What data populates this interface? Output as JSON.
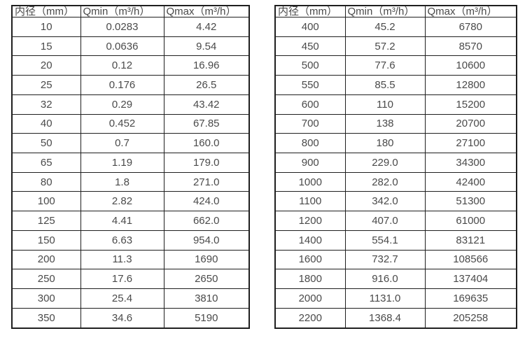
{
  "colors": {
    "background": "#ffffff",
    "text": "#4a4a4a",
    "border": "#1f1f1f"
  },
  "tables": [
    {
      "name": "diameter-flow-table-1",
      "headers": [
        "内径（mm）",
        "Qmin（m³/h）",
        "Qmax（m³/h）"
      ],
      "rows": [
        [
          "10",
          "0.0283",
          "4.42"
        ],
        [
          "15",
          "0.0636",
          "9.54"
        ],
        [
          "20",
          "0.12",
          "16.96"
        ],
        [
          "25",
          "0.176",
          "26.5"
        ],
        [
          "32",
          "0.29",
          "43.42"
        ],
        [
          "40",
          "0.452",
          "67.85"
        ],
        [
          "50",
          "0.7",
          "160.0"
        ],
        [
          "65",
          "1.19",
          "179.0"
        ],
        [
          "80",
          "1.8",
          "271.0"
        ],
        [
          "100",
          "2.82",
          "424.0"
        ],
        [
          "125",
          "4.41",
          "662.0"
        ],
        [
          "150",
          "6.63",
          "954.0"
        ],
        [
          "200",
          "11.3",
          "1690"
        ],
        [
          "250",
          "17.6",
          "2650"
        ],
        [
          "300",
          "25.4",
          "3810"
        ],
        [
          "350",
          "34.6",
          "5190"
        ]
      ]
    },
    {
      "name": "diameter-flow-table-2",
      "headers": [
        "内径（mm）",
        "Qmin（m³/h）",
        "Qmax（m³/h）"
      ],
      "rows": [
        [
          "400",
          "45.2",
          "6780"
        ],
        [
          "450",
          "57.2",
          "8570"
        ],
        [
          "500",
          "77.6",
          "10600"
        ],
        [
          "550",
          "85.5",
          "12800"
        ],
        [
          "600",
          "110",
          "15200"
        ],
        [
          "700",
          "138",
          "20700"
        ],
        [
          "800",
          "180",
          "27100"
        ],
        [
          "900",
          "229.0",
          "34300"
        ],
        [
          "1000",
          "282.0",
          "42400"
        ],
        [
          "1100",
          "342.0",
          "51300"
        ],
        [
          "1200",
          "407.0",
          "61000"
        ],
        [
          "1400",
          "554.1",
          "83121"
        ],
        [
          "1600",
          "732.7",
          "108566"
        ],
        [
          "1800",
          "916.0",
          "137404"
        ],
        [
          "2000",
          "1131.0",
          "169635"
        ],
        [
          "2200",
          "1368.4",
          "205258"
        ]
      ]
    }
  ]
}
